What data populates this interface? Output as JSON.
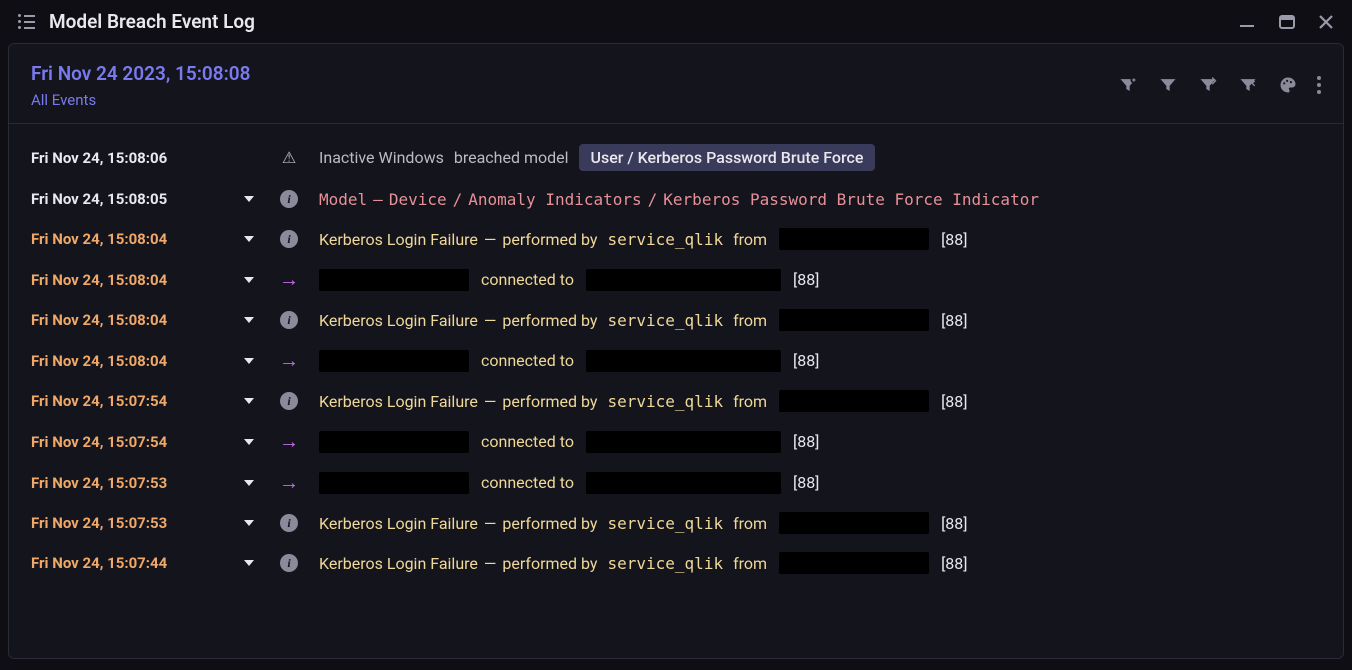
{
  "colors": {
    "background": "#0e0e14",
    "panel_bg": "#14141c",
    "border": "#2a2a38",
    "accent_purple": "#7a7af0",
    "ts_orange": "#f0a868",
    "text_yellow": "#f0d898",
    "text_white": "#e8e8ee",
    "text_grey": "#bbbbc8",
    "model_red": "#e89098",
    "arrow_pink": "#c770e8",
    "pill_bg": "#3a3a5a",
    "redacted": "#000000"
  },
  "window": {
    "title": "Model Breach Event Log"
  },
  "header": {
    "timestamp": "Fri Nov 24 2023, 15:08:08",
    "subtitle": "All Events"
  },
  "breach_row": {
    "ts": "Fri Nov 24, 15:08:06",
    "device_state": "Inactive Windows",
    "verb": "breached model",
    "model_pill": "User / Kerberos Password Brute Force"
  },
  "model_row": {
    "ts": "Fri Nov 24, 15:08:05",
    "label": "Model",
    "sep1": "—",
    "path1": "Device",
    "path2": "Anomaly Indicators",
    "path3": "Kerberos Password Brute Force Indicator"
  },
  "login_failure": {
    "event_name": "Kerberos Login Failure",
    "sep": "—",
    "performed_by": "performed by",
    "user": "service_qlik",
    "from": "from",
    "port": "[88]"
  },
  "connection": {
    "connected_to": "connected to",
    "port": "[88]"
  },
  "events": [
    {
      "type": "login",
      "ts": "Fri Nov 24, 15:08:04"
    },
    {
      "type": "conn",
      "ts": "Fri Nov 24, 15:08:04"
    },
    {
      "type": "login",
      "ts": "Fri Nov 24, 15:08:04"
    },
    {
      "type": "conn",
      "ts": "Fri Nov 24, 15:08:04"
    },
    {
      "type": "login",
      "ts": "Fri Nov 24, 15:07:54"
    },
    {
      "type": "conn",
      "ts": "Fri Nov 24, 15:07:54"
    },
    {
      "type": "conn",
      "ts": "Fri Nov 24, 15:07:53"
    },
    {
      "type": "login",
      "ts": "Fri Nov 24, 15:07:53"
    },
    {
      "type": "login",
      "ts": "Fri Nov 24, 15:07:44"
    }
  ],
  "redacted_widths": {
    "source": 150,
    "dest": 195,
    "from": 150
  }
}
